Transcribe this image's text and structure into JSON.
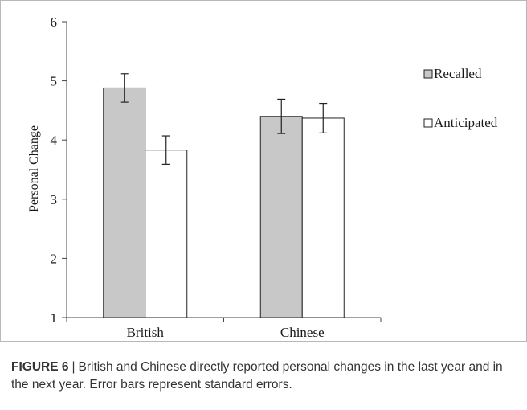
{
  "chart_data": {
    "type": "bar",
    "ylabel": "Personal Change",
    "ylim": [
      1,
      6
    ],
    "yticks": [
      1,
      2,
      3,
      4,
      5,
      6
    ],
    "categories": [
      "British",
      "Chinese"
    ],
    "series": [
      {
        "name": "Recalled",
        "values": [
          4.88,
          4.4
        ],
        "errors": [
          0.24,
          0.29
        ],
        "color": "#c8c8c8"
      },
      {
        "name": "Anticipated",
        "values": [
          3.83,
          4.37
        ],
        "errors": [
          0.24,
          0.25
        ],
        "color": "#ffffff"
      }
    ],
    "legend_position": "right",
    "grid": false
  },
  "caption": {
    "label": "FIGURE 6",
    "separator": "|",
    "text": "British and Chinese directly reported personal changes in the last year and in the next year. Error bars represent standard errors."
  }
}
